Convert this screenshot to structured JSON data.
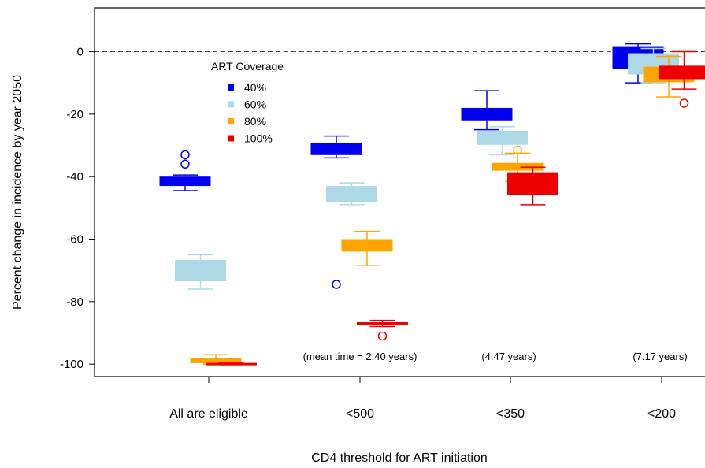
{
  "chart_data": {
    "type": "box",
    "x_label": "CD4 threshold for ART initiation",
    "y_label": "Percent change in incidence by year 2050",
    "categories": [
      "All are eligible",
      "<500",
      "<350",
      "<200"
    ],
    "annotations": [
      null,
      "(mean time = 2.40 years)",
      "(4.47 years)",
      "(7.17 years)"
    ],
    "ylim": [
      -104,
      14
    ],
    "yticks": [
      0,
      -20,
      -40,
      -60,
      -80,
      -100
    ],
    "reference_line": 0,
    "legend_title": "ART Coverage",
    "legend_position": "upper left",
    "series": [
      {
        "name": "40%",
        "color": "#0000ee",
        "boxes": [
          {
            "low": -44.5,
            "q1": -43,
            "median": -41.5,
            "q3": -40,
            "high": -39.5,
            "outliers": [
              -33,
              -36
            ]
          },
          {
            "low": -34,
            "q1": -33.1,
            "median": -31,
            "q3": -29.3,
            "high": -27,
            "outliers": [
              -74.5
            ]
          },
          {
            "low": -25,
            "q1": -22,
            "median": -20,
            "q3": -18,
            "high": -12.5,
            "outliers": []
          },
          {
            "low": -10,
            "q1": -5.5,
            "median": -2,
            "q3": 1.5,
            "high": 2.5,
            "outliers": []
          }
        ]
      },
      {
        "name": "60%",
        "color": "#add8e6",
        "boxes": [
          {
            "low": -76,
            "q1": -73.5,
            "median": -70,
            "q3": -66.7,
            "high": -65,
            "outliers": []
          },
          {
            "low": -49,
            "q1": -48.2,
            "median": -45.5,
            "q3": -43,
            "high": -42,
            "outliers": []
          },
          {
            "low": -33,
            "q1": -29.8,
            "median": -27.5,
            "q3": -25.3,
            "high": -24,
            "outliers": []
          },
          {
            "low": -10,
            "q1": -7.3,
            "median": -4,
            "q3": -0.5,
            "high": 1,
            "outliers": []
          }
        ]
      },
      {
        "name": "80%",
        "color": "#ffa500",
        "boxes": [
          {
            "low": -100,
            "q1": -99.7,
            "median": -99,
            "q3": -98,
            "high": -97,
            "outliers": []
          },
          {
            "low": -68.5,
            "q1": -64,
            "median": -62,
            "q3": -60,
            "high": -57.5,
            "outliers": []
          },
          {
            "low": -41.5,
            "q1": -38.1,
            "median": -37,
            "q3": -35.6,
            "high": -32.5,
            "outliers": [
              -31.5
            ]
          },
          {
            "low": -14.5,
            "q1": -9.8,
            "median": -7,
            "q3": -4.8,
            "high": -1.5,
            "outliers": []
          }
        ]
      },
      {
        "name": "100%",
        "color": "#ee0000",
        "boxes": [
          {
            "low": -100.2,
            "q1": -100.1,
            "median": -100,
            "q3": -99.8,
            "high": -99.5,
            "outliers": []
          },
          {
            "low": -88,
            "q1": -87.6,
            "median": -87,
            "q3": -86.6,
            "high": -86,
            "outliers": [
              -91
            ]
          },
          {
            "low": -49,
            "q1": -46,
            "median": -42,
            "q3": -38.6,
            "high": -37,
            "outliers": []
          },
          {
            "low": -12,
            "q1": -8.8,
            "median": -6.5,
            "q3": -4.5,
            "high": 0,
            "outliers": [
              -16.5
            ]
          }
        ]
      }
    ]
  }
}
